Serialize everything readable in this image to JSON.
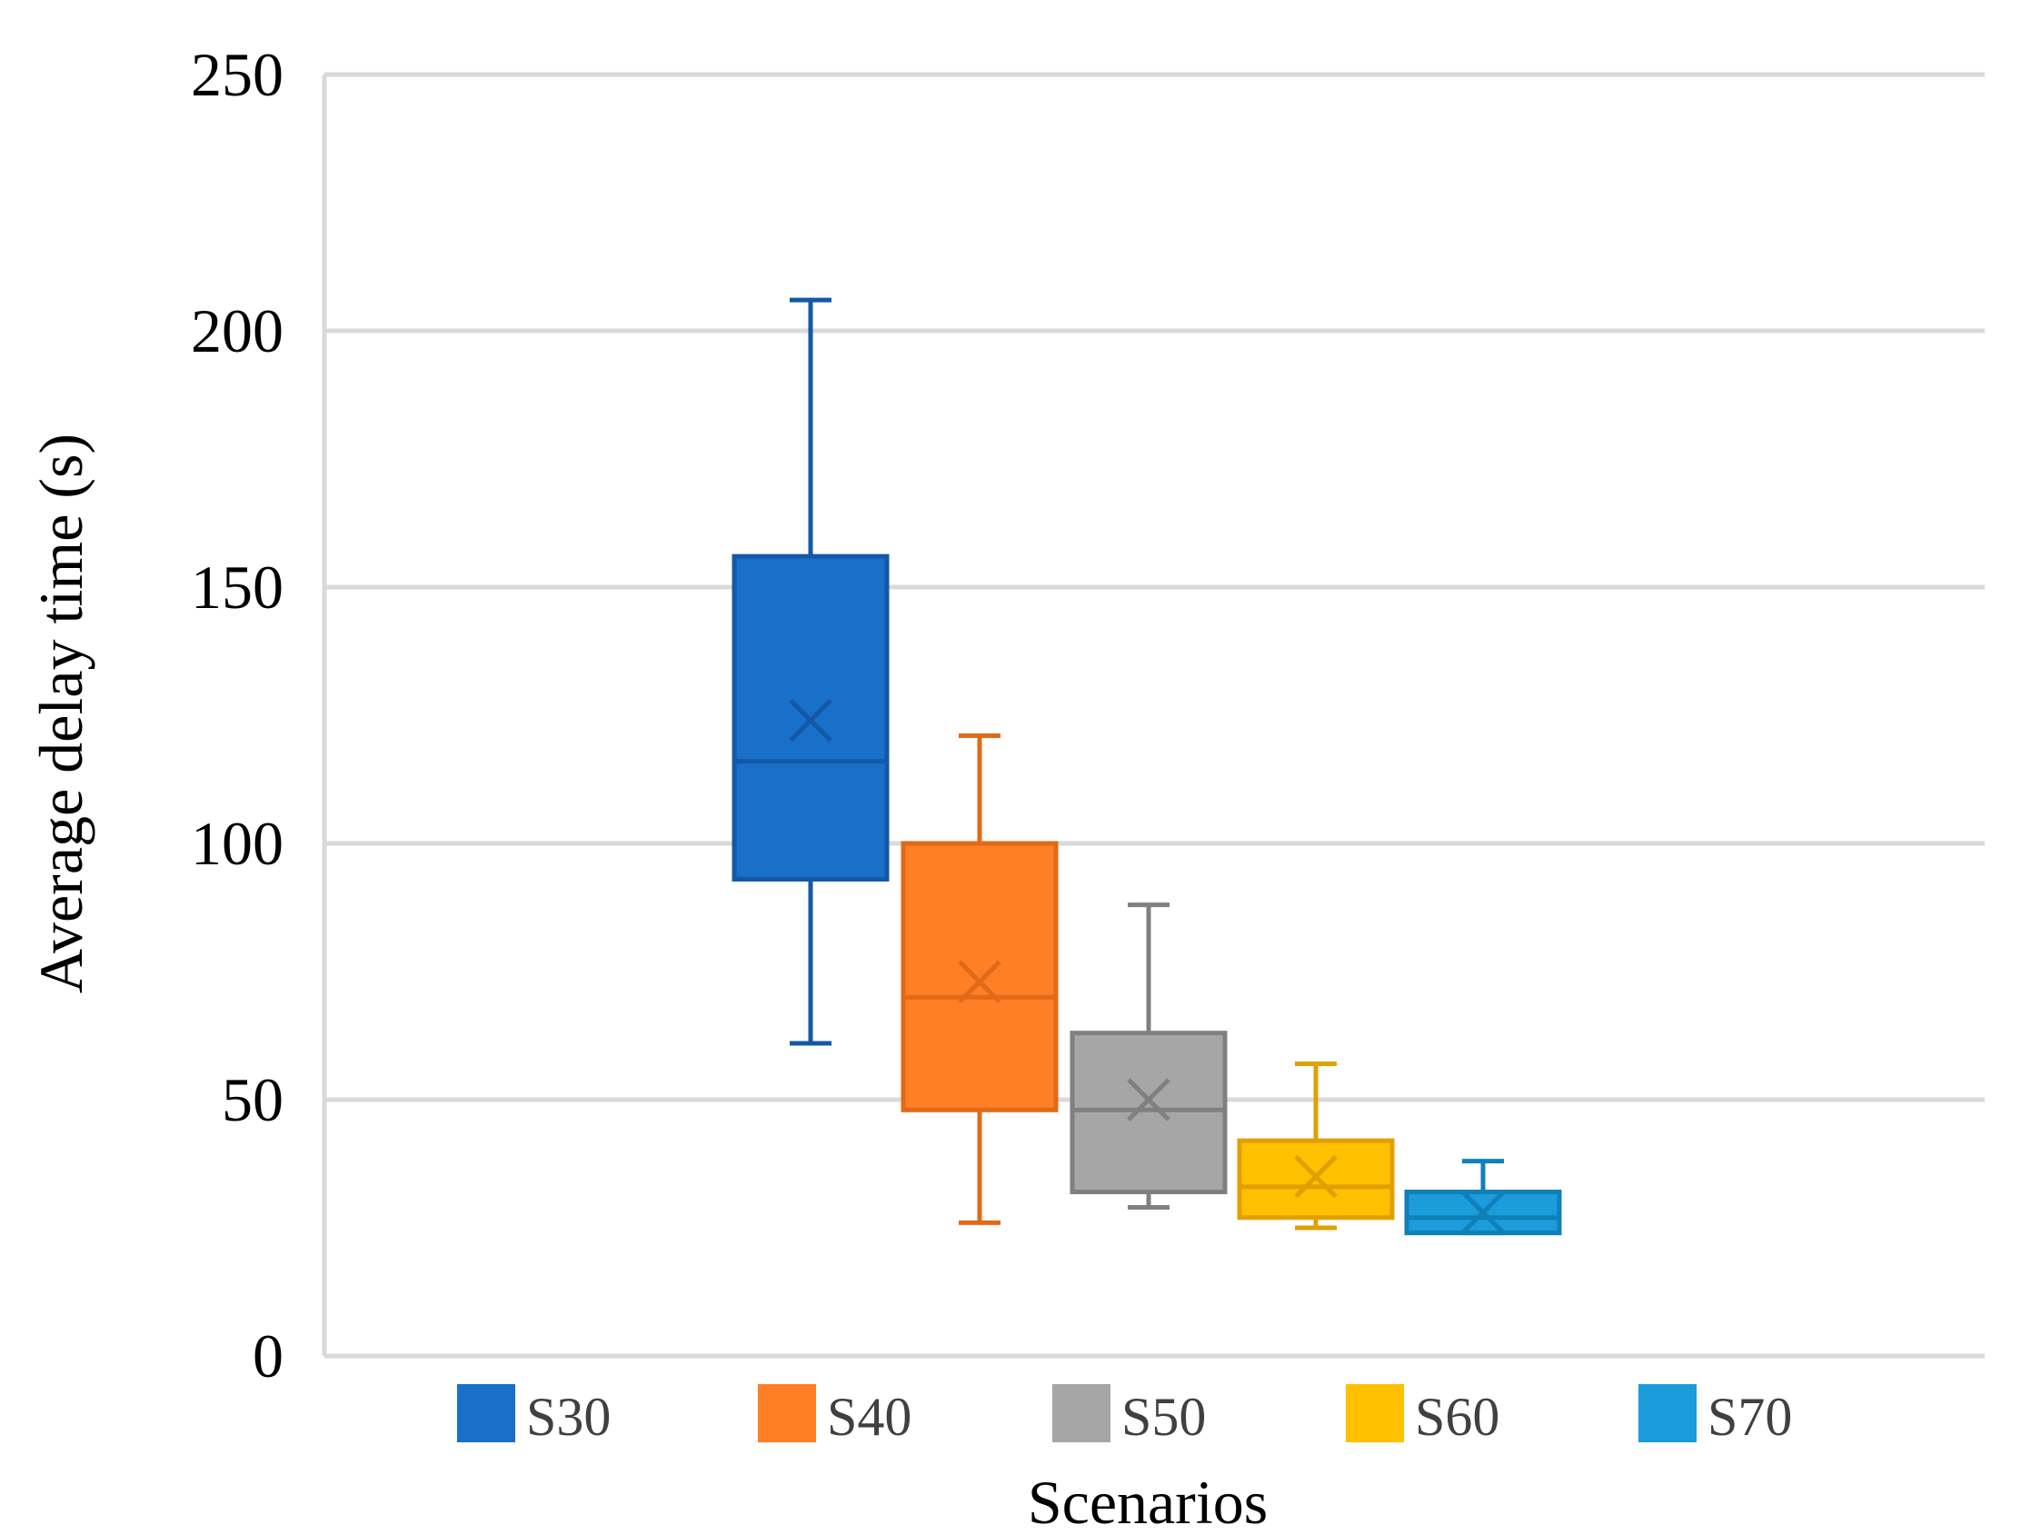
{
  "chart_data": {
    "type": "box",
    "title": "",
    "xlabel": "Scenarios",
    "ylabel": "Average delay time (s)",
    "ylim": [
      0,
      250
    ],
    "yticks": [
      0,
      50,
      100,
      150,
      200,
      250
    ],
    "grid": true,
    "legend_position": "bottom",
    "series": [
      {
        "name": "S30",
        "color": "#1870C8",
        "stroke": "#1458A8",
        "min": 61,
        "q1": 93,
        "median": 116,
        "q3": 156,
        "max": 206,
        "mean": 124
      },
      {
        "name": "S40",
        "color": "#FF7F27",
        "stroke": "#E06A18",
        "min": 26,
        "q1": 48,
        "median": 70,
        "q3": 100,
        "max": 121,
        "mean": 73
      },
      {
        "name": "S50",
        "color": "#A6A6A6",
        "stroke": "#808080",
        "min": 29,
        "q1": 32,
        "median": 48,
        "q3": 63,
        "max": 88,
        "mean": 50
      },
      {
        "name": "S60",
        "color": "#FFC000",
        "stroke": "#E0A000",
        "min": 25,
        "q1": 27,
        "median": 33,
        "q3": 42,
        "max": 57,
        "mean": 35
      },
      {
        "name": "S70",
        "color": "#1B9CDB",
        "stroke": "#1080B8",
        "min": 24,
        "q1": 24,
        "median": 27,
        "q3": 32,
        "max": 38,
        "mean": 28
      }
    ]
  }
}
